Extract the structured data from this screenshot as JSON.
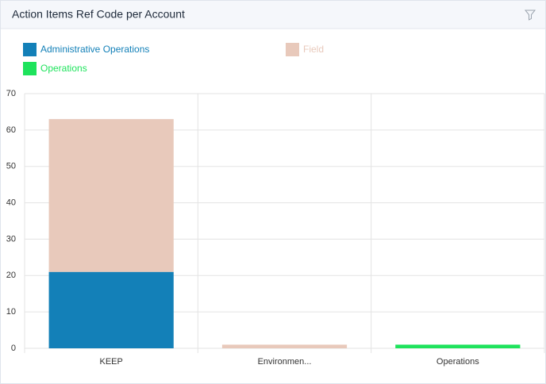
{
  "chart_data": {
    "type": "stacked-bar",
    "title": "Action Items Ref Code per Account",
    "categories": [
      "KEEP",
      "Environmen...",
      "Operations"
    ],
    "series": [
      {
        "name": "Administrative Operations",
        "color": "#1380b8",
        "values": [
          21,
          0,
          0
        ]
      },
      {
        "name": "Field",
        "color": "#e8c9bb",
        "values": [
          42,
          1,
          0
        ]
      },
      {
        "name": "Operations",
        "color": "#1ee35c",
        "values": [
          0,
          0,
          1
        ]
      }
    ],
    "ylim": [
      0,
      70
    ],
    "yticks": [
      0,
      10,
      20,
      30,
      40,
      50,
      60,
      70
    ],
    "grid": true
  }
}
